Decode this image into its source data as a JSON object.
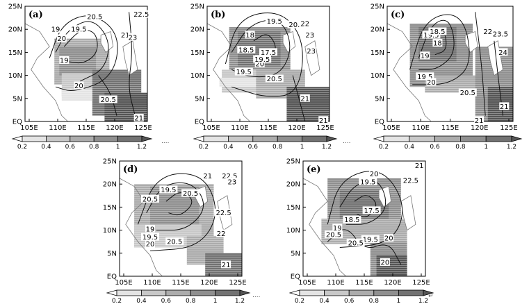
{
  "figure": {
    "lat_labels": [
      "EQ",
      "5N",
      "10N",
      "15N",
      "20N",
      "25N"
    ],
    "lon_labels": [
      "105E",
      "110E",
      "115E",
      "120E",
      "125E"
    ],
    "colorbar_labels": [
      "0.2",
      "0.4",
      "0.6",
      "0.8",
      "1",
      "1.2"
    ],
    "colorbar_colors": [
      "#ffffff",
      "#e4e4e4",
      "#c8c8c8",
      "#acacac",
      "#8f8f8f",
      "#727272",
      "#555555"
    ],
    "separator_text": "....",
    "end_mark": "↵"
  },
  "panels": [
    {
      "label": "(a)",
      "contour_labels": [
        "20.5",
        "19.5",
        "19",
        "20",
        "22.5",
        "21",
        "23",
        "19",
        "20",
        "20.5",
        "21"
      ]
    },
    {
      "label": "(b)",
      "contour_labels": [
        "19.5",
        "20.5",
        "22",
        "23",
        "18",
        "18.5",
        "17.5",
        "23",
        "19.5",
        "20.5",
        "20",
        "19.5",
        "21",
        "21"
      ]
    },
    {
      "label": "(c)",
      "contour_labels": [
        "23.5",
        "19.5",
        "18.5",
        "18",
        "19",
        "22",
        "24",
        "19.5",
        "20",
        "20.5",
        "21",
        "21"
      ]
    },
    {
      "label": "(d)",
      "contour_labels": [
        "22.5",
        "23",
        "21",
        "19.5",
        "20.5",
        "20.5",
        "19",
        "19.5",
        "20",
        "20.5",
        "22.5",
        "22",
        "21"
      ]
    },
    {
      "label": "(e)",
      "contour_labels": [
        "21",
        "20",
        "19.5",
        "22.5",
        "17.5",
        "18.5",
        "20.5",
        "19",
        "19.5",
        "20.5",
        "20",
        "20"
      ]
    }
  ],
  "chart_data": {
    "type": "heatmap",
    "panels": [
      "(a)",
      "(b)",
      "(c)",
      "(d)",
      "(e)"
    ],
    "x_ticks": [
      "105E",
      "110E",
      "115E",
      "120E",
      "125E"
    ],
    "y_ticks": [
      "EQ",
      "5N",
      "10N",
      "15N",
      "20N",
      "25N"
    ],
    "xlim": [
      105,
      125
    ],
    "ylim": [
      0,
      25
    ],
    "colorbar_levels": [
      0.2,
      0.4,
      0.6,
      0.8,
      1,
      1.2
    ],
    "colorbar_triangle_ends": true,
    "contour_fields": "labelled contour lines overlaid on grey-shaded field"
  }
}
